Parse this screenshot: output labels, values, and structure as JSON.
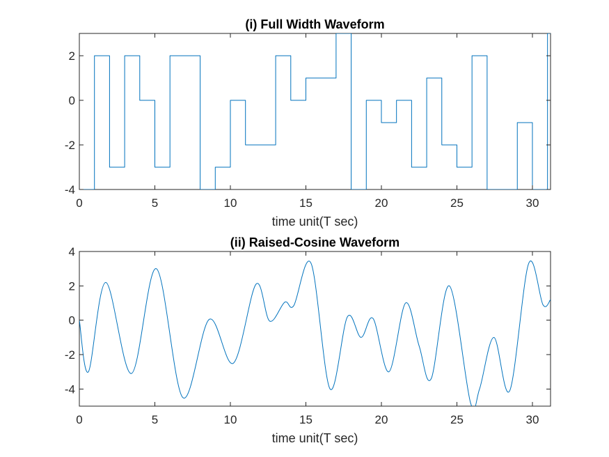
{
  "chart_data": [
    {
      "type": "line",
      "title": "(i) Full Width Waveform",
      "xlabel": "time unit(T sec)",
      "ylabel": "",
      "xlim": [
        0,
        31.2
      ],
      "ylim": [
        -4,
        3
      ],
      "xticks": [
        0,
        5,
        10,
        15,
        20,
        25,
        30
      ],
      "yticks": [
        -4,
        -2,
        0,
        2
      ],
      "grid": false,
      "color": "#0072BD",
      "style": "step",
      "series": [
        {
          "symbols": [
            -4,
            2,
            -3,
            2,
            0,
            -3,
            2,
            2,
            -4,
            -3,
            0,
            -2,
            -2,
            2,
            0,
            1,
            1,
            3,
            -4,
            0,
            -1,
            0,
            -3,
            1,
            -2,
            -3,
            2,
            -4,
            -4,
            -1,
            -4,
            3
          ],
          "symbol_duration": 1
        }
      ]
    },
    {
      "type": "line",
      "title": "(ii) Raised-Cosine Waveform",
      "xlabel": "time unit(T sec)",
      "ylabel": "",
      "xlim": [
        0,
        31.2
      ],
      "ylim": [
        -5,
        4
      ],
      "xticks": [
        0,
        5,
        10,
        15,
        20,
        25,
        30
      ],
      "yticks": [
        -4,
        -2,
        0,
        2,
        4
      ],
      "grid": false,
      "color": "#0072BD",
      "style": "smooth",
      "series": [
        {
          "x": [
            0,
            0.6,
            1.75,
            3.45,
            5.1,
            6.85,
            8.6,
            10.2,
            11.7,
            12.6,
            13.6,
            14.2,
            15.35,
            16.6,
            17.75,
            18.65,
            19.45,
            20.5,
            21.6,
            22.5,
            23.3,
            24.5,
            25.9,
            26.5,
            27.45,
            28.5,
            29.75,
            30.7,
            31.2
          ],
          "y": [
            0,
            -3,
            2.2,
            -3.1,
            3.0,
            -4.5,
            0.05,
            -2.5,
            2.1,
            -0.05,
            1.05,
            0.85,
            3.3,
            -4.0,
            0.2,
            -1.0,
            0.1,
            -3.0,
            1.0,
            -1.5,
            -3.4,
            2.0,
            -4.8,
            -4.0,
            -1.0,
            -4.1,
            3.3,
            0.9,
            1.2
          ]
        }
      ]
    }
  ]
}
